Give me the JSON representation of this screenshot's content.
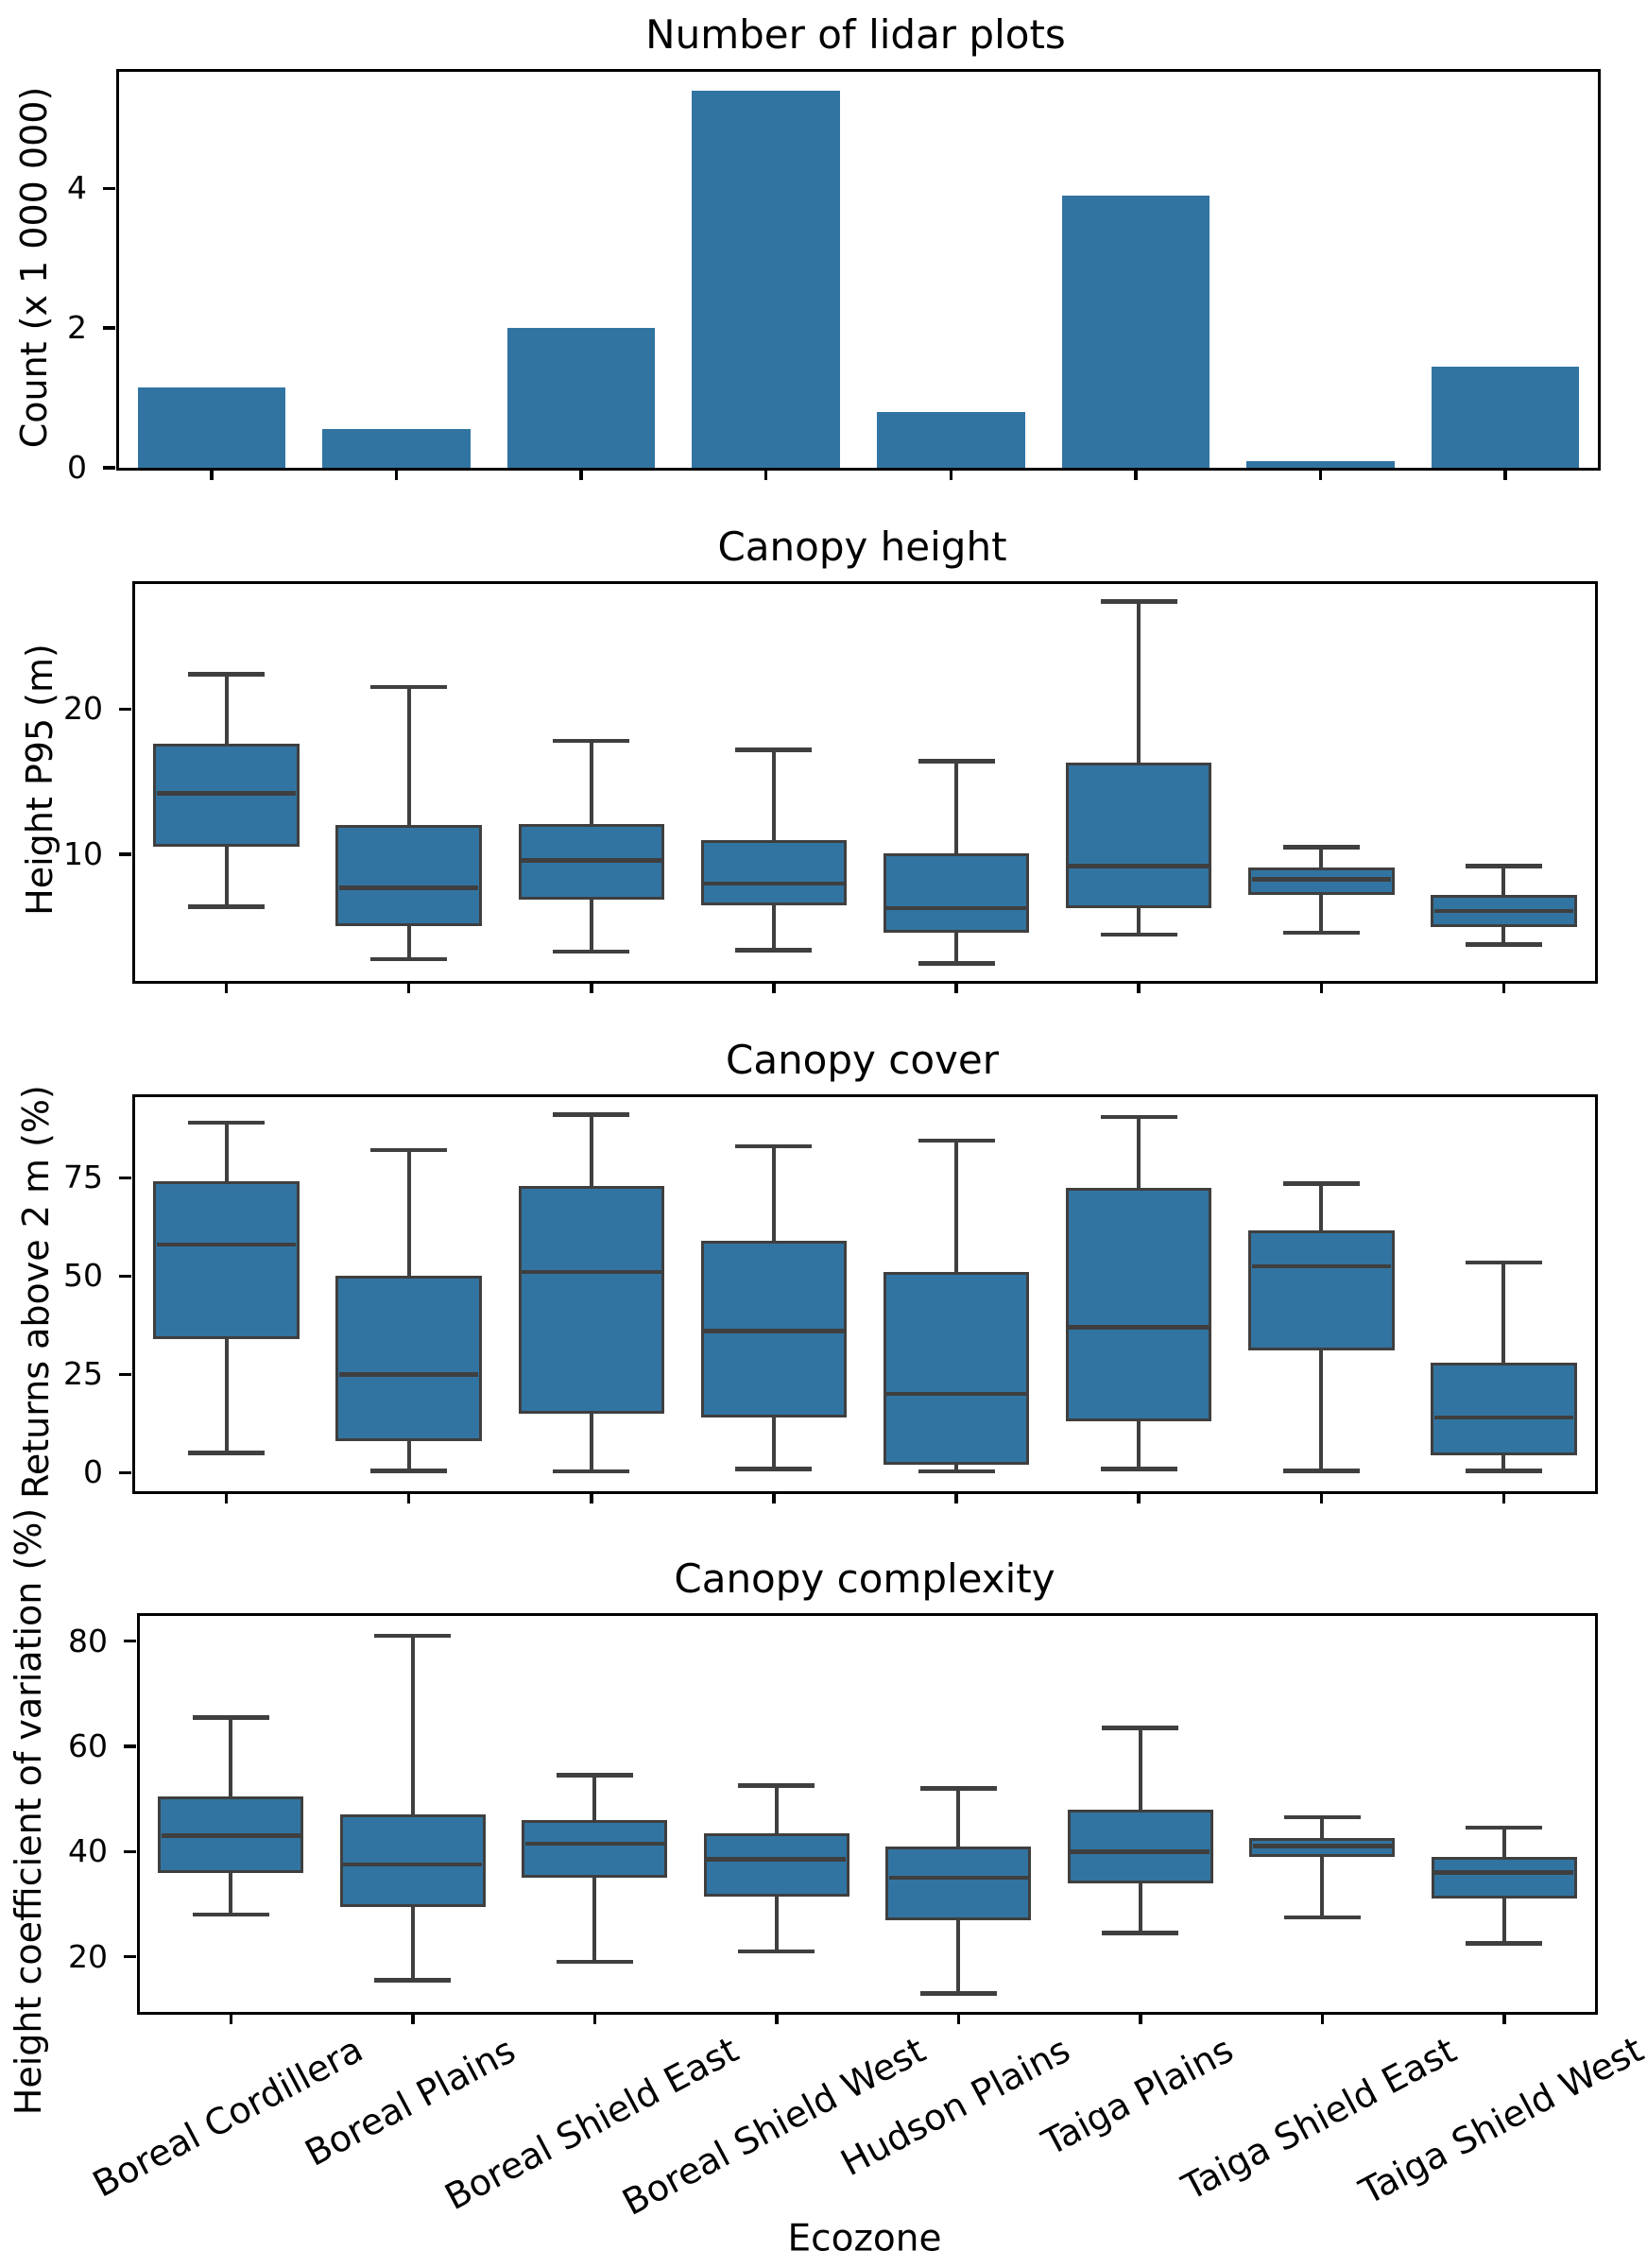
{
  "colors": {
    "fill": "#3274a1",
    "line": "#3f3f3f",
    "axis": "#000000"
  },
  "xlabel": "Ecozone",
  "categories": [
    "Boreal Cordillera",
    "Boreal Plains",
    "Boreal Shield East",
    "Boreal Shield West",
    "Hudson Plains",
    "Taiga Plains",
    "Taiga Shield East",
    "Taiga Shield West"
  ],
  "chart_data": [
    {
      "type": "bar",
      "title": "Number of lidar plots",
      "ylabel": "Count (x 1 000 000)",
      "ylim": [
        0,
        5.67
      ],
      "yticks": [
        0,
        2,
        4
      ],
      "categories": [
        "Boreal Cordillera",
        "Boreal Plains",
        "Boreal Shield East",
        "Boreal Shield West",
        "Hudson Plains",
        "Taiga Plains",
        "Taiga Shield East",
        "Taiga Shield West"
      ],
      "values": [
        1.15,
        0.55,
        2.0,
        5.4,
        0.8,
        3.9,
        0.1,
        1.45
      ]
    },
    {
      "type": "box",
      "title": "Canopy height",
      "ylabel": "Height P95 (m)",
      "ylim": [
        1.3,
        28.6
      ],
      "yticks": [
        10,
        20
      ],
      "boxes": [
        {
          "whislo": 6.4,
          "q1": 10.5,
          "med": 14.2,
          "q3": 17.6,
          "whishi": 22.4
        },
        {
          "whislo": 2.8,
          "q1": 5.1,
          "med": 7.7,
          "q3": 12.0,
          "whishi": 21.5
        },
        {
          "whislo": 3.3,
          "q1": 6.9,
          "med": 9.6,
          "q3": 12.1,
          "whishi": 17.8
        },
        {
          "whislo": 3.4,
          "q1": 6.5,
          "med": 8.0,
          "q3": 11.0,
          "whishi": 17.2
        },
        {
          "whislo": 2.5,
          "q1": 4.6,
          "med": 6.3,
          "q3": 10.1,
          "whishi": 16.4
        },
        {
          "whislo": 4.5,
          "q1": 6.3,
          "med": 9.2,
          "q3": 16.3,
          "whishi": 27.4
        },
        {
          "whislo": 4.6,
          "q1": 7.2,
          "med": 8.3,
          "q3": 9.1,
          "whishi": 10.5
        },
        {
          "whislo": 3.8,
          "q1": 5.0,
          "med": 6.1,
          "q3": 7.2,
          "whishi": 9.2
        }
      ]
    },
    {
      "type": "box",
      "title": "Canopy cover",
      "ylabel": "Returns above 2 m (%)",
      "ylim": [
        -4.7,
        95.5
      ],
      "yticks": [
        0,
        25,
        50,
        75
      ],
      "boxes": [
        {
          "whislo": 5,
          "q1": 34,
          "med": 58,
          "q3": 74,
          "whishi": 89
        },
        {
          "whislo": 0.5,
          "q1": 8,
          "med": 25,
          "q3": 50,
          "whishi": 82
        },
        {
          "whislo": 0.3,
          "q1": 15,
          "med": 51,
          "q3": 73,
          "whishi": 91
        },
        {
          "whislo": 1,
          "q1": 14,
          "med": 36,
          "q3": 59,
          "whishi": 83
        },
        {
          "whislo": 0.3,
          "q1": 2,
          "med": 20,
          "q3": 51,
          "whishi": 84.5
        },
        {
          "whislo": 1,
          "q1": 13,
          "med": 37,
          "q3": 72.5,
          "whishi": 90.5
        },
        {
          "whislo": 0.5,
          "q1": 31,
          "med": 52.5,
          "q3": 61.5,
          "whishi": 73.5
        },
        {
          "whislo": 0.5,
          "q1": 4.5,
          "med": 14,
          "q3": 28,
          "whishi": 53.5
        }
      ]
    },
    {
      "type": "box",
      "title": "Canopy complexity",
      "ylabel": "Height coefficient of variation (%)",
      "ylim": [
        9.5,
        84.8
      ],
      "yticks": [
        20,
        40,
        60,
        80
      ],
      "boxes": [
        {
          "whislo": 28,
          "q1": 36,
          "med": 43,
          "q3": 50.5,
          "whishi": 65.5
        },
        {
          "whislo": 15.5,
          "q1": 29.5,
          "med": 37.5,
          "q3": 47,
          "whishi": 81
        },
        {
          "whislo": 19,
          "q1": 35,
          "med": 41.5,
          "q3": 46,
          "whishi": 54.5
        },
        {
          "whislo": 21,
          "q1": 31.5,
          "med": 38.5,
          "q3": 43.5,
          "whishi": 52.5
        },
        {
          "whislo": 13,
          "q1": 27,
          "med": 35,
          "q3": 41,
          "whishi": 52
        },
        {
          "whislo": 24.5,
          "q1": 34,
          "med": 40,
          "q3": 48,
          "whishi": 63.5
        },
        {
          "whislo": 27.5,
          "q1": 39,
          "med": 41,
          "q3": 42.5,
          "whishi": 46.5
        },
        {
          "whislo": 22.5,
          "q1": 31,
          "med": 36,
          "q3": 39,
          "whishi": 44.5
        }
      ]
    }
  ]
}
